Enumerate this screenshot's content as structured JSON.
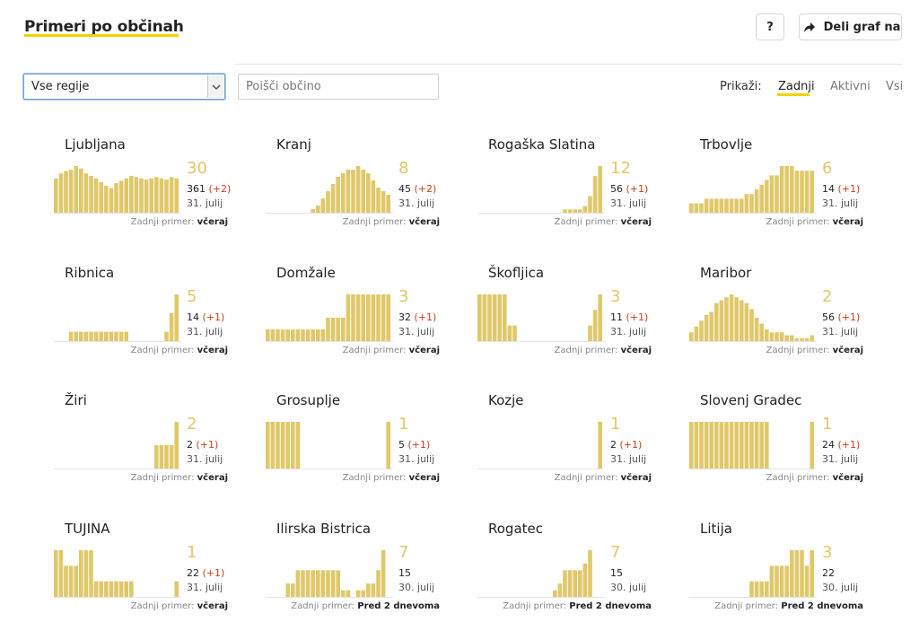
{
  "header": {
    "title": "Primeri po občinah",
    "help_label": "?",
    "share_label": "Deli graf na"
  },
  "filters": {
    "region_select_value": "Vse regije",
    "search_placeholder": "Poišči občino",
    "show_label": "Prikaži:",
    "tabs": [
      {
        "label": "Zadnji",
        "active": true
      },
      {
        "label": "Aktivni",
        "active": false
      },
      {
        "label": "Vsi",
        "active": false
      }
    ]
  },
  "colors": {
    "bar": "#e0c86a",
    "accent": "#f5d100",
    "delta": "#cc3b1f"
  },
  "last_case_label": "Zadnji primer:",
  "cards": [
    {
      "name": "Ljubljana",
      "latest": "30",
      "total": "361",
      "delta": "(+2)",
      "date": "31. julij",
      "last_case": "včeraj",
      "bars": [
        28,
        32,
        34,
        35,
        38,
        36,
        32,
        30,
        28,
        25,
        22,
        20,
        24,
        26,
        28,
        30,
        29,
        28,
        27,
        28,
        29,
        28,
        27,
        29,
        28
      ]
    },
    {
      "name": "Kranj",
      "latest": "8",
      "total": "45",
      "delta": "(+2)",
      "date": "31. julij",
      "last_case": "včeraj",
      "bars": [
        0,
        0,
        0,
        0,
        0,
        0,
        0,
        0,
        0,
        2,
        4,
        8,
        12,
        16,
        20,
        22,
        24,
        24,
        26,
        24,
        22,
        18,
        14,
        12,
        10
      ]
    },
    {
      "name": "Rogaška Slatina",
      "latest": "12",
      "total": "56",
      "delta": "(+1)",
      "date": "31. julij",
      "last_case": "včeraj",
      "bars": [
        0,
        0,
        0,
        0,
        0,
        0,
        0,
        0,
        0,
        0,
        0,
        0,
        0,
        0,
        0,
        0,
        0,
        1,
        1,
        1,
        1,
        2,
        5,
        11,
        14
      ]
    },
    {
      "name": "Trbovlje",
      "latest": "6",
      "total": "14",
      "delta": "(+1)",
      "date": "31. julij",
      "last_case": "včeraj",
      "bars": [
        2,
        2,
        2,
        3,
        3,
        3,
        3,
        3,
        3,
        3,
        3,
        4,
        4,
        5,
        6,
        7,
        8,
        8,
        10,
        10,
        10,
        9,
        9,
        9,
        9
      ]
    },
    {
      "name": "Ribnica",
      "latest": "5",
      "total": "14",
      "delta": "(+1)",
      "date": "31. julij",
      "last_case": "včeraj",
      "bars": [
        0,
        0,
        0,
        1,
        1,
        1,
        1,
        1,
        1,
        1,
        1,
        1,
        1,
        1,
        1,
        0,
        0,
        0,
        0,
        0,
        0,
        0,
        1,
        3,
        5
      ]
    },
    {
      "name": "Domžale",
      "latest": "3",
      "total": "32",
      "delta": "(+1)",
      "date": "31. julij",
      "last_case": "včeraj",
      "bars": [
        1,
        1,
        1,
        1,
        1,
        1,
        1,
        1,
        1,
        1,
        1,
        1,
        2,
        2,
        2,
        2,
        4,
        4,
        4,
        4,
        4,
        4,
        4,
        4,
        4
      ]
    },
    {
      "name": "Škofljica",
      "latest": "3",
      "total": "11",
      "delta": "(+1)",
      "date": "31. julij",
      "last_case": "včeraj",
      "bars": [
        3,
        3,
        3,
        3,
        3,
        3,
        1,
        1,
        0,
        0,
        0,
        0,
        0,
        0,
        0,
        0,
        0,
        0,
        0,
        0,
        0,
        0,
        1,
        2,
        3
      ]
    },
    {
      "name": "Maribor",
      "latest": "2",
      "total": "56",
      "delta": "(+1)",
      "date": "31. julij",
      "last_case": "včeraj",
      "bars": [
        3,
        5,
        7,
        9,
        10,
        13,
        14,
        15,
        16,
        15,
        14,
        13,
        11,
        8,
        6,
        4,
        3,
        3,
        3,
        2,
        2,
        1,
        1,
        1,
        2
      ]
    },
    {
      "name": "Žiri",
      "latest": "2",
      "total": "2",
      "delta": "(+1)",
      "date": "31. julij",
      "last_case": "včeraj",
      "bars": [
        0,
        0,
        0,
        0,
        0,
        0,
        0,
        0,
        0,
        0,
        0,
        0,
        0,
        0,
        0,
        0,
        0,
        0,
        0,
        0,
        1,
        1,
        1,
        1,
        2
      ]
    },
    {
      "name": "Grosuplje",
      "latest": "1",
      "total": "5",
      "delta": "(+1)",
      "date": "31. julij",
      "last_case": "včeraj",
      "bars": [
        1,
        1,
        1,
        1,
        1,
        1,
        1,
        0,
        0,
        0,
        0,
        0,
        0,
        0,
        0,
        0,
        0,
        0,
        0,
        0,
        0,
        0,
        0,
        0,
        1
      ]
    },
    {
      "name": "Kozje",
      "latest": "1",
      "total": "2",
      "delta": "(+1)",
      "date": "31. julij",
      "last_case": "včeraj",
      "bars": [
        0,
        0,
        0,
        0,
        0,
        0,
        0,
        0,
        0,
        0,
        0,
        0,
        0,
        0,
        0,
        0,
        0,
        0,
        0,
        0,
        0,
        0,
        0,
        0,
        1
      ]
    },
    {
      "name": "Slovenj Gradec",
      "latest": "1",
      "total": "24",
      "delta": "(+1)",
      "date": "31. julij",
      "last_case": "včeraj",
      "bars": [
        1,
        1,
        1,
        1,
        1,
        1,
        1,
        1,
        1,
        1,
        1,
        1,
        1,
        1,
        1,
        1,
        0,
        0,
        0,
        0,
        0,
        0,
        0,
        0,
        1
      ]
    },
    {
      "name": "TUJINA",
      "latest": "1",
      "total": "22",
      "delta": "(+1)",
      "date": "31. julij",
      "last_case": "včeraj",
      "bars": [
        3,
        3,
        2,
        2,
        2,
        3,
        3,
        3,
        1,
        1,
        1,
        1,
        1,
        1,
        1,
        1,
        0,
        0,
        0,
        0,
        0,
        0,
        0,
        0,
        1
      ]
    },
    {
      "name": "Ilirska Bistrica",
      "latest": "7",
      "total": "15",
      "delta": "",
      "date": "30. julij",
      "last_case": "Pred 2 dnevoma",
      "bars": [
        0,
        0,
        0,
        0,
        2,
        2,
        4,
        4,
        4,
        4,
        4,
        4,
        4,
        4,
        4,
        1,
        1,
        0,
        1,
        1,
        2,
        2,
        4,
        7,
        0
      ]
    },
    {
      "name": "Rogatec",
      "latest": "7",
      "total": "15",
      "delta": "",
      "date": "30. julij",
      "last_case": "Pred 2 dnevoma",
      "bars": [
        0,
        0,
        0,
        0,
        0,
        0,
        0,
        0,
        0,
        0,
        0,
        0,
        0,
        0,
        0,
        1,
        2,
        4,
        4,
        4,
        4,
        5,
        7,
        0,
        0
      ]
    },
    {
      "name": "Litija",
      "latest": "3",
      "total": "22",
      "delta": "",
      "date": "30. julij",
      "last_case": "Pred 2 dnevoma",
      "bars": [
        0,
        0,
        0,
        0,
        0,
        0,
        0,
        0,
        0,
        0,
        0,
        0,
        1,
        1,
        1,
        1,
        2,
        2,
        2,
        2,
        3,
        3,
        3,
        2,
        3
      ]
    }
  ]
}
